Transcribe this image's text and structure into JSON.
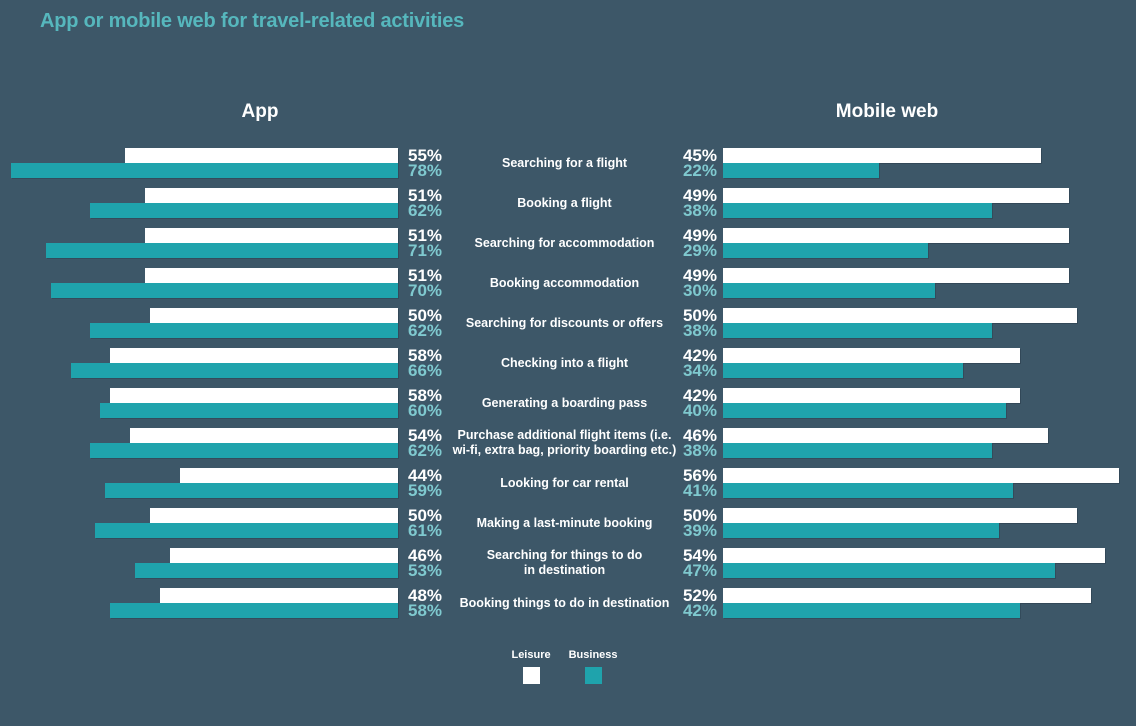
{
  "title": "App or mobile web for travel-related activities",
  "colors": {
    "background": "#3d5768",
    "title": "#56b7bd",
    "leisure": "#ffffff",
    "business": "#1fa3ac",
    "business_value_text": "#7fc9cf"
  },
  "chart_data": {
    "type": "bar",
    "orientation": "horizontal-diverging-butterfly",
    "title": "App or mobile web for travel-related activities",
    "unit": "%",
    "legend": [
      "Leisure",
      "Business"
    ],
    "legend_position": "bottom-center",
    "categories": [
      "Searching for a flight",
      "Booking a flight",
      "Searching for accommodation",
      "Booking accommodation",
      "Searching for discounts or offers",
      "Checking into a flight",
      "Generating a boarding pass",
      "Purchase additional flight items (i.e.\nwi-fi, extra bag, priority boarding etc.)",
      "Looking for car rental",
      "Making a last-minute booking",
      "Searching for things to do\nin destination",
      "Booking things to do in destination"
    ],
    "panels": [
      {
        "name": "App",
        "direction": "right-to-left",
        "series": [
          {
            "name": "Leisure",
            "values": [
              55,
              51,
              51,
              51,
              50,
              58,
              58,
              54,
              44,
              50,
              46,
              48
            ]
          },
          {
            "name": "Business",
            "values": [
              78,
              62,
              71,
              70,
              62,
              66,
              60,
              62,
              59,
              61,
              53,
              58
            ]
          }
        ]
      },
      {
        "name": "Mobile web",
        "direction": "left-to-right",
        "series": [
          {
            "name": "Leisure",
            "values": [
              45,
              49,
              49,
              49,
              50,
              42,
              42,
              46,
              56,
              50,
              54,
              52
            ]
          },
          {
            "name": "Business",
            "values": [
              22,
              38,
              29,
              30,
              38,
              34,
              40,
              38,
              41,
              39,
              47,
              42
            ]
          }
        ]
      }
    ],
    "xlim_left_panel": [
      0,
      80
    ],
    "xlim_right_panel": [
      0,
      58
    ],
    "grid": false
  }
}
